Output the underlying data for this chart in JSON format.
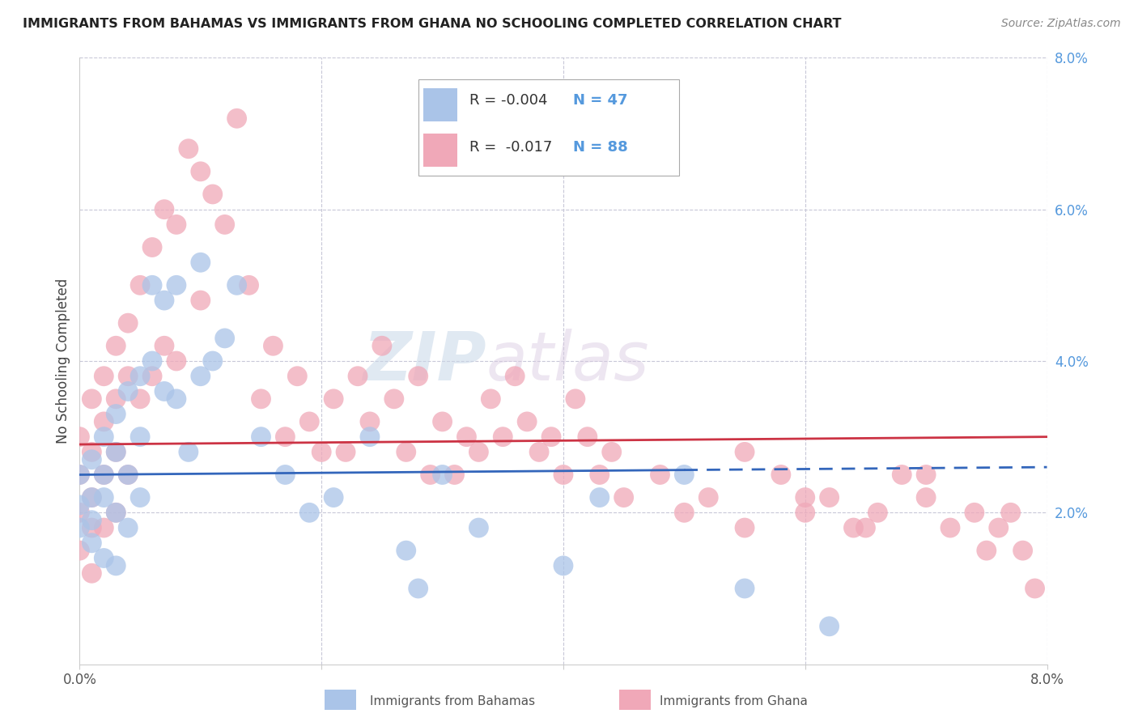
{
  "title": "IMMIGRANTS FROM BAHAMAS VS IMMIGRANTS FROM GHANA NO SCHOOLING COMPLETED CORRELATION CHART",
  "source": "Source: ZipAtlas.com",
  "ylabel": "No Schooling Completed",
  "xlim": [
    0.0,
    0.08
  ],
  "ylim": [
    0.0,
    0.08
  ],
  "legend_r1": "R = -0.004",
  "legend_n1": "N = 47",
  "legend_r2": "R =  -0.017",
  "legend_n2": "N = 88",
  "color_bahamas": "#aac4e8",
  "color_ghana": "#f0a8b8",
  "line_color_bahamas": "#3366bb",
  "line_color_ghana": "#cc3344",
  "background_color": "#ffffff",
  "grid_color": "#c8c8d8",
  "watermark_zip": "ZIP",
  "watermark_atlas": "atlas",
  "title_fontsize": 11.5,
  "source_fontsize": 10,
  "tick_label_color": "#5599dd",
  "bottom_label_color": "#555555"
}
